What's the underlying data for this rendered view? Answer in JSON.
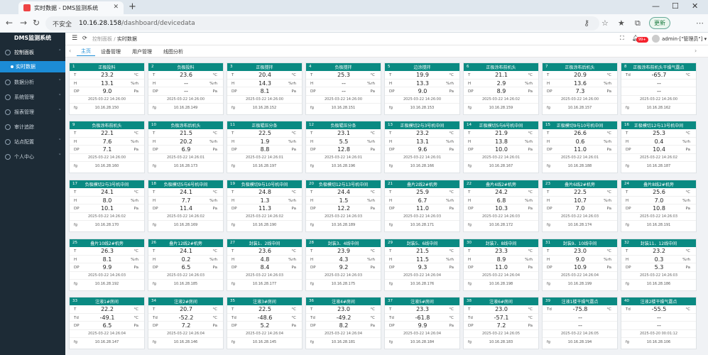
{
  "browser": {
    "tab_title": "实时数据 - DMS监测系统",
    "insecure": "不安全",
    "host": "10.16.28.158",
    "path": "/dashboard/devicedata",
    "update": "更新"
  },
  "sidebar": {
    "brand": "DMS监测系统",
    "items": [
      {
        "label": "控制面板",
        "icon": "dashboard-icon"
      },
      {
        "label": "实时数据",
        "icon": "dot-icon"
      },
      {
        "label": "数据分析",
        "icon": "chart-icon"
      },
      {
        "label": "系统管理",
        "icon": "gear-icon"
      },
      {
        "label": "报表管理",
        "icon": "report-icon"
      },
      {
        "label": "审计追踪",
        "icon": "audit-icon"
      },
      {
        "label": "站点配置",
        "icon": "site-icon"
      },
      {
        "label": "个人中心",
        "icon": "user-icon"
      }
    ]
  },
  "header": {
    "crumb_home": "控制面板",
    "crumb_sep": "/",
    "crumb_cur": "实时数据",
    "badge": "99+",
    "user": "admin-[\"管理员\"]",
    "user_caret": "▾"
  },
  "tags": [
    "主页",
    "设备管理",
    "用户管理",
    "线图分析"
  ],
  "cards": [
    {
      "no": "1",
      "name": "正极投料",
      "r": [
        [
          "T",
          "23.2",
          "°C"
        ],
        [
          "H",
          "13.1",
          "%rh"
        ],
        [
          "DP",
          "9.0",
          "Pa"
        ]
      ],
      "ts": "2025-03-22 14:26:00",
      "ip": "10.16.28.150"
    },
    {
      "no": "2",
      "name": "负极投料",
      "r": [
        [
          "T",
          "23.6",
          "°C"
        ],
        [
          "H",
          "--",
          "%rh"
        ],
        [
          "DP",
          "--",
          "Pa"
        ]
      ],
      "ts": "2025-03-22 14:26:00",
      "ip": "10.16.28.149"
    },
    {
      "no": "3",
      "name": "正极搅拌",
      "r": [
        [
          "T",
          "20.4",
          "°C"
        ],
        [
          "H",
          "14.3",
          "%rh"
        ],
        [
          "DP",
          "8.1",
          "Pa"
        ]
      ],
      "ts": "2025-03-22 14:26:00",
      "ip": "10.16.28.152"
    },
    {
      "no": "4",
      "name": "负极搅拌",
      "r": [
        [
          "T",
          "25.3",
          "°C"
        ],
        [
          "H",
          "--",
          "%rh"
        ],
        [
          "DP",
          "--",
          "Pa"
        ]
      ],
      "ts": "2025-03-22 14:26:00",
      "ip": "10.16.28.151"
    },
    {
      "no": "5",
      "name": "边涂搅拌",
      "r": [
        [
          "T",
          "19.9",
          "°C"
        ],
        [
          "H",
          "13.3",
          "%rh"
        ],
        [
          "DP",
          "9.0",
          "Pa"
        ]
      ],
      "ts": "2025-03-22 14:26:00",
      "ip": "10.16.28.153"
    },
    {
      "no": "6",
      "name": "正极涂布前机头",
      "r": [
        [
          "T",
          "21.1",
          "°C"
        ],
        [
          "H",
          "2.9",
          "%rh"
        ],
        [
          "DP",
          "8.9",
          "Pa"
        ]
      ],
      "ts": "2025-03-22 14:26:02",
      "ip": "10.16.28.159"
    },
    {
      "no": "7",
      "name": "正极涂布后机头",
      "r": [
        [
          "T",
          "20.9",
          "°C"
        ],
        [
          "H",
          "13.6",
          "%rh"
        ],
        [
          "DP",
          "7.3",
          "Pa"
        ]
      ],
      "ts": "2025-03-22 14:26:00",
      "ip": "10.16.28.157"
    },
    {
      "no": "8",
      "name": "正极涂布前机头干燥气露点",
      "r": [
        [
          "Td",
          "-65.7",
          "°C"
        ],
        [
          "",
          "--",
          ""
        ],
        [
          "",
          "--",
          ""
        ]
      ],
      "ts": "2025-03-22 14:26:00",
      "ip": "10.16.28.162"
    },
    {
      "no": "9",
      "name": "负极涂布前机头",
      "r": [
        [
          "T",
          "22.1",
          "°C"
        ],
        [
          "H",
          "7.6",
          "%rh"
        ],
        [
          "DP",
          "7.1",
          "Pa"
        ]
      ],
      "ts": "2025-03-22 14:26:00",
      "ip": "10.16.28.160"
    },
    {
      "no": "10",
      "name": "负极涂布后机头",
      "r": [
        [
          "T",
          "21.5",
          "°C"
        ],
        [
          "H",
          "20.2",
          "%rh"
        ],
        [
          "DP",
          "6.9",
          "Pa"
        ]
      ],
      "ts": "2025-03-22 14:26:01",
      "ip": "10.16.28.173"
    },
    {
      "no": "11",
      "name": "正极辊压分条",
      "r": [
        [
          "T",
          "22.5",
          "°C"
        ],
        [
          "H",
          "1.9",
          "%rh"
        ],
        [
          "DP",
          "8.8",
          "Pa"
        ]
      ],
      "ts": "2025-03-22 14:26:01",
      "ip": "10.16.28.197"
    },
    {
      "no": "12",
      "name": "负极辊压分条",
      "r": [
        [
          "T",
          "23.1",
          "°C"
        ],
        [
          "H",
          "5.5",
          "%rh"
        ],
        [
          "DP",
          "12.8",
          "Pa"
        ]
      ],
      "ts": "2025-03-22 14:26:01",
      "ip": "10.16.28.196"
    },
    {
      "no": "13",
      "name": "正极模切2与3号机中间",
      "r": [
        [
          "T",
          "23.2",
          "°C"
        ],
        [
          "H",
          "13.1",
          "%rh"
        ],
        [
          "DP",
          "9.6",
          "Pa"
        ]
      ],
      "ts": "2025-03-22 14:26:01",
      "ip": "10.16.28.166"
    },
    {
      "no": "14",
      "name": "正极模切5与6号机中间",
      "r": [
        [
          "T",
          "21.9",
          "°C"
        ],
        [
          "H",
          "13.8",
          "%rh"
        ],
        [
          "DP",
          "10.0",
          "Pa"
        ]
      ],
      "ts": "2025-03-22 14:26:01",
      "ip": "10.16.28.167"
    },
    {
      "no": "15",
      "name": "正极模切9与10号机中间",
      "r": [
        [
          "T",
          "26.6",
          "°C"
        ],
        [
          "H",
          "0.6",
          "%rh"
        ],
        [
          "DP",
          "11.0",
          "Pa"
        ]
      ],
      "ts": "2025-03-22 14:26:01",
      "ip": "10.16.28.188"
    },
    {
      "no": "16",
      "name": "正极模切12与13号机中间",
      "r": [
        [
          "T",
          "25.3",
          "°C"
        ],
        [
          "H",
          "0.4",
          "%rh"
        ],
        [
          "DP",
          "10.4",
          "Pa"
        ]
      ],
      "ts": "2025-03-22 14:26:02",
      "ip": "10.16.28.187"
    },
    {
      "no": "17",
      "name": "负极模切2与3号机中间",
      "r": [
        [
          "T",
          "24.1",
          "°C"
        ],
        [
          "H",
          "8.0",
          "%rh"
        ],
        [
          "DP",
          "10.1",
          "Pa"
        ]
      ],
      "ts": "2025-03-22 14:26:02",
      "ip": "10.16.28.170"
    },
    {
      "no": "18",
      "name": "负极模切5与6号机中间",
      "r": [
        [
          "T",
          "24.1",
          "°C"
        ],
        [
          "H",
          "7.7",
          "%rh"
        ],
        [
          "DP",
          "11.4",
          "Pa"
        ]
      ],
      "ts": "2025-03-22 14:26:02",
      "ip": "10.16.28.169"
    },
    {
      "no": "19",
      "name": "负极模切9与10号机中间",
      "r": [
        [
          "T",
          "24.8",
          "°C"
        ],
        [
          "H",
          "1.3",
          "%rh"
        ],
        [
          "DP",
          "11.3",
          "Pa"
        ]
      ],
      "ts": "2025-03-22 14:26:02",
      "ip": "10.16.28.190"
    },
    {
      "no": "20",
      "name": "负极模切12与13号机中间",
      "r": [
        [
          "T",
          "24.4",
          "°C"
        ],
        [
          "H",
          "1.5",
          "%rh"
        ],
        [
          "DP",
          "12.2",
          "Pa"
        ]
      ],
      "ts": "2025-03-22 14:26:03",
      "ip": "10.16.28.189"
    },
    {
      "no": "21",
      "name": "叠片2线2#机旁",
      "r": [
        [
          "T",
          "25.9",
          "°C"
        ],
        [
          "H",
          "6.7",
          "%rh"
        ],
        [
          "DP",
          "11.0",
          "Pa"
        ]
      ],
      "ts": "2025-03-22 14:26:03",
      "ip": "10.16.28.171"
    },
    {
      "no": "22",
      "name": "叠片4线2#机旁",
      "r": [
        [
          "T",
          "24.2",
          "°C"
        ],
        [
          "H",
          "6.8",
          "%rh"
        ],
        [
          "DP",
          "10.3",
          "Pa"
        ]
      ],
      "ts": "2025-03-22 14:26:03",
      "ip": "10.16.28.172"
    },
    {
      "no": "23",
      "name": "叠片6线2#机旁",
      "r": [
        [
          "T",
          "22.5",
          "°C"
        ],
        [
          "H",
          "10.7",
          "%rh"
        ],
        [
          "DP",
          "7.0",
          "Pa"
        ]
      ],
      "ts": "2025-03-22 14:26:03",
      "ip": "10.16.28.174"
    },
    {
      "no": "24",
      "name": "叠片8线2#机旁",
      "r": [
        [
          "T",
          "25.6",
          "°C"
        ],
        [
          "H",
          "7.0",
          "%rh"
        ],
        [
          "DP",
          "10.8",
          "Pa"
        ]
      ],
      "ts": "2025-03-22 14:26:03",
      "ip": "10.16.28.191"
    },
    {
      "no": "25",
      "name": "叠片10线2#机旁",
      "r": [
        [
          "T",
          "26.3",
          "°C"
        ],
        [
          "H",
          "8.1",
          "%rh"
        ],
        [
          "DP",
          "9.9",
          "Pa"
        ]
      ],
      "ts": "2025-03-22 14:26:03",
      "ip": "10.16.28.192"
    },
    {
      "no": "26",
      "name": "叠片12线2#机旁",
      "r": [
        [
          "T",
          "24.1",
          "°C"
        ],
        [
          "H",
          "0.2",
          "%rh"
        ],
        [
          "DP",
          "6.5",
          "Pa"
        ]
      ],
      "ts": "2025-03-22 14:26:03",
      "ip": "10.16.28.185"
    },
    {
      "no": "27",
      "name": "封装1、2线中间",
      "r": [
        [
          "T",
          "23.6",
          "°C"
        ],
        [
          "H",
          "4.8",
          "%rh"
        ],
        [
          "DP",
          "8.4",
          "Pa"
        ]
      ],
      "ts": "2025-03-22 14:26:03",
      "ip": "10.16.28.177"
    },
    {
      "no": "28",
      "name": "封装3、4线中间",
      "r": [
        [
          "T",
          "23.9",
          "°C"
        ],
        [
          "H",
          "4.3",
          "%rh"
        ],
        [
          "DP",
          "9.2",
          "Pa"
        ]
      ],
      "ts": "2025-03-22 14:26:03",
      "ip": "10.16.28.175"
    },
    {
      "no": "29",
      "name": "封装5、6线中间",
      "r": [
        [
          "T",
          "21.5",
          "°C"
        ],
        [
          "H",
          "11.5",
          "%rh"
        ],
        [
          "DP",
          "9.3",
          "Pa"
        ]
      ],
      "ts": "2025-03-22 14:26:04",
      "ip": "10.16.28.176"
    },
    {
      "no": "30",
      "name": "封装7、8线中间",
      "r": [
        [
          "T",
          "23.3",
          "°C"
        ],
        [
          "H",
          "8.9",
          "%rh"
        ],
        [
          "DP",
          "11.0",
          "Pa"
        ]
      ],
      "ts": "2025-03-22 14:26:04",
      "ip": "10.16.28.198"
    },
    {
      "no": "31",
      "name": "封装9、10线中间",
      "r": [
        [
          "T",
          "23.0",
          "°C"
        ],
        [
          "H",
          "9.0",
          "%rh"
        ],
        [
          "DP",
          "10.9",
          "Pa"
        ]
      ],
      "ts": "2025-03-22 14:26:04",
      "ip": "10.16.28.199"
    },
    {
      "no": "32",
      "name": "封装11、12线中间",
      "r": [
        [
          "T",
          "23.2",
          "°C"
        ],
        [
          "H",
          "0.3",
          "%rh"
        ],
        [
          "DP",
          "5.3",
          "Pa"
        ]
      ],
      "ts": "2025-03-22 14:26:03",
      "ip": "10.16.28.186"
    },
    {
      "no": "33",
      "name": "注液1#房间",
      "r": [
        [
          "T",
          "22.2",
          "°C"
        ],
        [
          "Td",
          "-49.1",
          "°C"
        ],
        [
          "DP",
          "6.5",
          "Pa"
        ]
      ],
      "ts": "2025-03-22 14:26:04",
      "ip": "10.16.28.147"
    },
    {
      "no": "34",
      "name": "注液2#房间",
      "r": [
        [
          "T",
          "20.7",
          "°C"
        ],
        [
          "Td",
          "-52.2",
          "°C"
        ],
        [
          "DP",
          "7.2",
          "Pa"
        ]
      ],
      "ts": "2025-03-22 14:26:04",
      "ip": "10.16.28.146"
    },
    {
      "no": "35",
      "name": "注液3#房间",
      "r": [
        [
          "T",
          "22.5",
          "°C"
        ],
        [
          "Td",
          "-48.6",
          "°C"
        ],
        [
          "DP",
          "5.2",
          "Pa"
        ]
      ],
      "ts": "2025-03-22 14:26:04",
      "ip": "10.16.28.145"
    },
    {
      "no": "36",
      "name": "注液4#房间",
      "r": [
        [
          "T",
          "23.0",
          "°C"
        ],
        [
          "Td",
          "-49.2",
          "°C"
        ],
        [
          "DP",
          "8.2",
          "Pa"
        ]
      ],
      "ts": "2025-03-22 14:26:04",
      "ip": "10.16.28.181"
    },
    {
      "no": "37",
      "name": "注液5#房间",
      "r": [
        [
          "T",
          "23.3",
          "°C"
        ],
        [
          "Td",
          "-61.8",
          "°C"
        ],
        [
          "DP",
          "9.9",
          "Pa"
        ]
      ],
      "ts": "2025-03-22 14:26:04",
      "ip": "10.16.28.184"
    },
    {
      "no": "38",
      "name": "注液6#房间",
      "r": [
        [
          "T",
          "23.0",
          "°C"
        ],
        [
          "Td",
          "-57.1",
          "°C"
        ],
        [
          "DP",
          "7.2",
          "Pa"
        ]
      ],
      "ts": "2025-03-22 14:26:05",
      "ip": "10.16.28.183"
    },
    {
      "no": "39",
      "name": "注液1楼干燥气露点",
      "r": [
        [
          "Td",
          "-75.8",
          "°C"
        ],
        [
          "",
          "--",
          ""
        ],
        [
          "",
          "--",
          ""
        ]
      ],
      "ts": "2025-03-22 14:26:05",
      "ip": "10.16.28.194"
    },
    {
      "no": "40",
      "name": "注液2楼干燥气露点",
      "r": [
        [
          "Td",
          "-55.5",
          "°C"
        ],
        [
          "",
          "--",
          ""
        ],
        [
          "",
          "--",
          ""
        ]
      ],
      "ts": "2025-03-20 00:01:12",
      "ip": "10.16.28.106"
    }
  ],
  "ip_label": "fg"
}
